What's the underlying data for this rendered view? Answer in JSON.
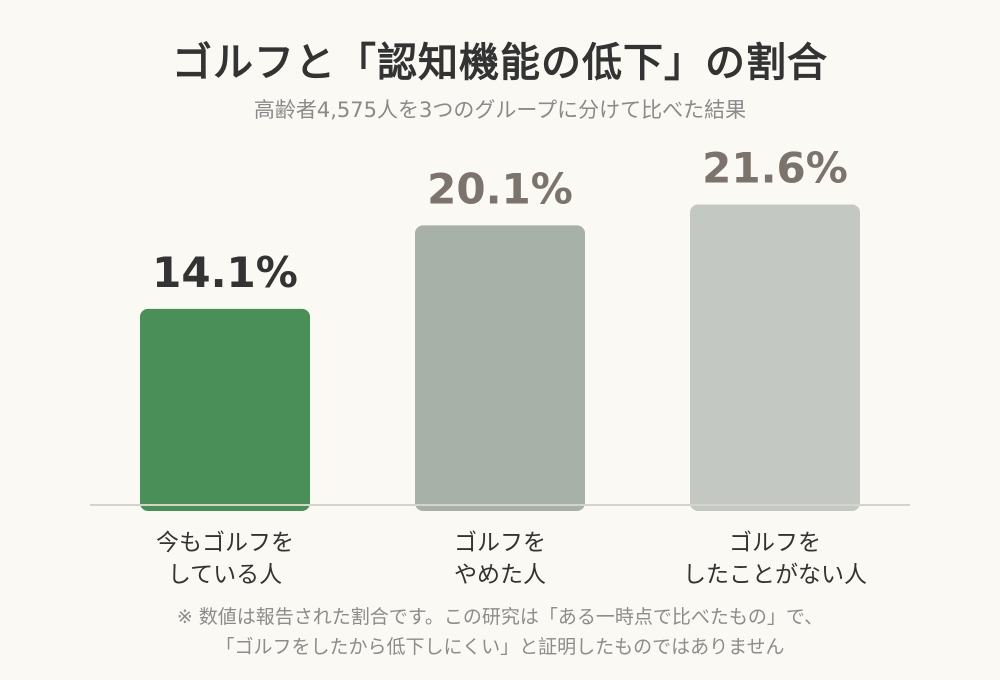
{
  "chart_data": {
    "type": "bar",
    "title": "ゴルフと「認知機能の低下」の割合",
    "subtitle": "高齢者4,575人を3つのグループに分けて比べた結果",
    "categories": [
      [
        "今もゴルフを",
        "している人"
      ],
      [
        "ゴルフを",
        "やめた人"
      ],
      [
        "ゴルフを",
        "したことがない人"
      ]
    ],
    "values": [
      14.1,
      20.1,
      21.6
    ],
    "value_labels": [
      "14.1%",
      "20.1%",
      "21.6%"
    ],
    "unit": "%",
    "ylim": [
      0,
      24.8
    ],
    "grid": false,
    "legend": "none",
    "colors": [
      "#4a8f57",
      "#a7b1a8",
      "#c4c8c2"
    ],
    "value_label_colors": [
      "#333333",
      "#7c736d",
      "#7c736d"
    ]
  },
  "notes": [
    "※ 数値は報告された割合です。この研究は「ある一時点で比べたもの」で、",
    "「ゴルフをしたから低下しにくい」と証明したものではありません"
  ]
}
